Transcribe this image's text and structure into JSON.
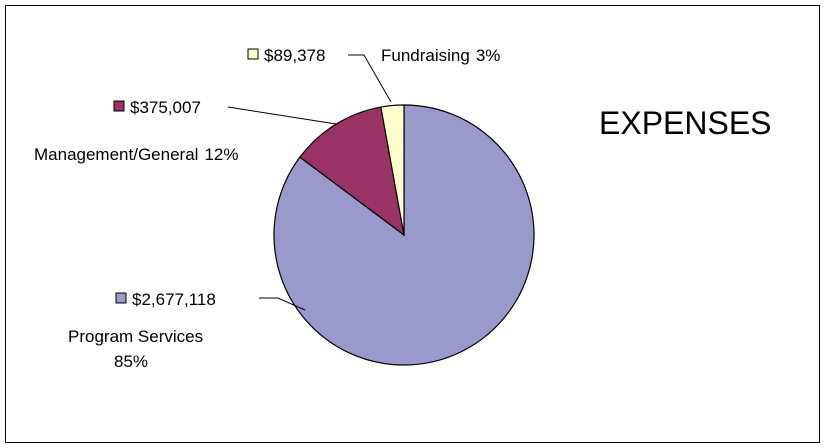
{
  "chart_data": {
    "type": "pie",
    "title": "EXPENSES",
    "slices": [
      {
        "name": "Program Services",
        "value": 2677118,
        "value_label": "$2,677,118",
        "percent_label": "85%",
        "color": "#9999CC"
      },
      {
        "name": "Management/General",
        "value": 375007,
        "value_label": "$375,007",
        "percent_label": "12%",
        "color": "#993366"
      },
      {
        "name": "Fundraising",
        "value": 89378,
        "value_label": "$89,378",
        "percent_label": "3%",
        "color": "#FFFFCC"
      }
    ]
  }
}
